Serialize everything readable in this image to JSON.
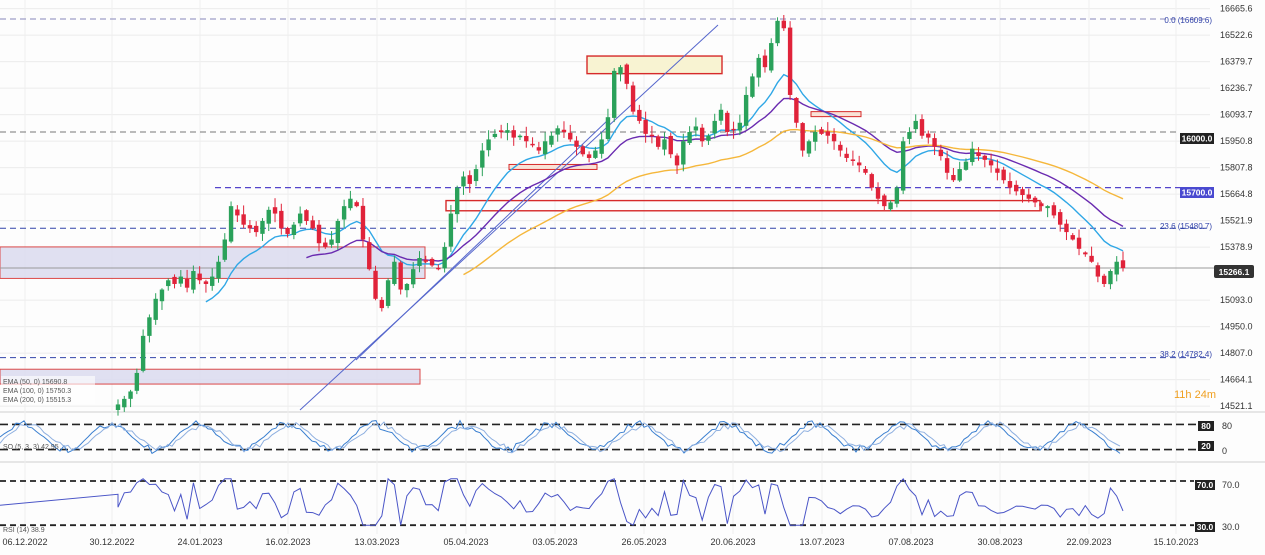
{
  "colors": {
    "bull": "#2aa15a",
    "bear": "#e0233a",
    "ema50": "#2fa7e6",
    "ema100": "#6a2bb0",
    "ema200": "#f5b73b",
    "fib": "#4a55c7",
    "price_tag": "#333333",
    "zone_fill": "#dcdcf0",
    "zone_fill_yellow": "#f8f3d2",
    "zone_border": "#d62a2a",
    "osc_line": "#3a7fd0",
    "rsi_line": "#4a55c7"
  },
  "main": {
    "y_ticks": [
      "16665.6",
      "16522.6",
      "16379.7",
      "16236.7",
      "16093.7",
      "15950.8",
      "15807.8",
      "15664.8",
      "15521.9",
      "15378.9",
      "15093.0",
      "14950.0",
      "14807.0",
      "14664.1",
      "14521.1"
    ],
    "ylim": [
      14500,
      16680
    ],
    "price_tag": "15266.1",
    "level_16000": "16000.0",
    "level_15700": "15700.0",
    "fib_top_label": "0.0 (16609.6)",
    "fib_236_label": "23.6 (15480.7)",
    "fib_382_label": "38.2 (14782.4)",
    "timer": "11h 24m",
    "legend": [
      {
        "text": "EMA (50, 0) 15690.8"
      },
      {
        "text": "EMA (100, 0) 15750.3"
      },
      {
        "text": "EMA (200, 0) 15515.3"
      }
    ]
  },
  "oscillator": {
    "y_ticks": [
      "80",
      "0"
    ],
    "upper_tag": "80",
    "lower_tag": "20",
    "label": "SO (5, 3, 3) 42.95"
  },
  "rsi": {
    "upper_tag": "70.0",
    "lower_tag": "30.0",
    "label": "RSI (14) 38.9"
  },
  "x_labels": [
    "06.12.2022",
    "30.12.2022",
    "24.01.2023",
    "16.02.2023",
    "13.03.2023",
    "05.04.2023",
    "03.05.2023",
    "26.05.2023",
    "20.06.2023",
    "13.07.2023",
    "07.08.2023",
    "30.08.2023",
    "22.09.2023",
    "15.10.2023"
  ],
  "chart_data": {
    "type": "candlestick",
    "title": "",
    "x_labels": [
      "06.12.2022",
      "30.12.2022",
      "24.01.2023",
      "16.02.2023",
      "13.03.2023",
      "05.04.2023",
      "03.05.2023",
      "26.05.2023",
      "20.06.2023",
      "13.07.2023",
      "07.08.2023",
      "30.08.2023",
      "22.09.2023",
      "15.10.2023"
    ],
    "closes": [
      14530,
      14560,
      14600,
      14700,
      14900,
      15000,
      15100,
      15150,
      15200,
      15180,
      15220,
      15160,
      15250,
      15200,
      15180,
      15220,
      15300,
      15420,
      15600,
      15550,
      15500,
      15480,
      15460,
      15520,
      15580,
      15560,
      15480,
      15450,
      15500,
      15560,
      15520,
      15480,
      15400,
      15380,
      15420,
      15520,
      15600,
      15640,
      15600,
      15420,
      15260,
      15100,
      15050,
      15200,
      15300,
      15150,
      15180,
      15260,
      15320,
      15300,
      15280,
      15260,
      15380,
      15560,
      15700,
      15760,
      15720,
      15800,
      15900,
      15960,
      15990,
      16000,
      16010,
      15970,
      15980,
      15950,
      15930,
      15900,
      15950,
      15980,
      16020,
      16000,
      15960,
      15920,
      15880,
      15860,
      15900,
      15960,
      16080,
      16330,
      16350,
      16260,
      16110,
      16060,
      15990,
      15980,
      15920,
      15960,
      15880,
      15820,
      15950,
      16000,
      16030,
      15950,
      15980,
      16060,
      16120,
      16000,
      16010,
      16050,
      16200,
      16300,
      16400,
      16350,
      16480,
      16600,
      16560,
      16200,
      16050,
      15900,
      15950,
      16000,
      15990,
      15980,
      15950,
      15900,
      15860,
      15850,
      15820,
      15780,
      15700,
      15640,
      15600,
      15620,
      15700,
      15950,
      16000,
      16060,
      15980,
      15970,
      15920,
      15870,
      15780,
      15740,
      15800,
      15840,
      15910,
      15870,
      15850,
      15820,
      15780,
      15740,
      15700,
      15680,
      15660,
      15640,
      15620,
      15600,
      15600,
      15550,
      15500,
      15460,
      15420,
      15370,
      15340,
      15300,
      15220,
      15180,
      15250,
      15300,
      15266
    ],
    "ema": [
      {
        "name": "EMA (50, 0) 15690.8",
        "period": 50
      },
      {
        "name": "EMA (100, 0) 15750.3",
        "period": 100
      },
      {
        "name": "EMA (200, 0) 15515.3",
        "period": 200
      }
    ],
    "horizontal_levels": [
      16609.6,
      16000.0,
      15700.0,
      15480.7,
      14782.4
    ],
    "rsi_levels": [
      70,
      30
    ],
    "stoch_levels": [
      80,
      20
    ]
  }
}
